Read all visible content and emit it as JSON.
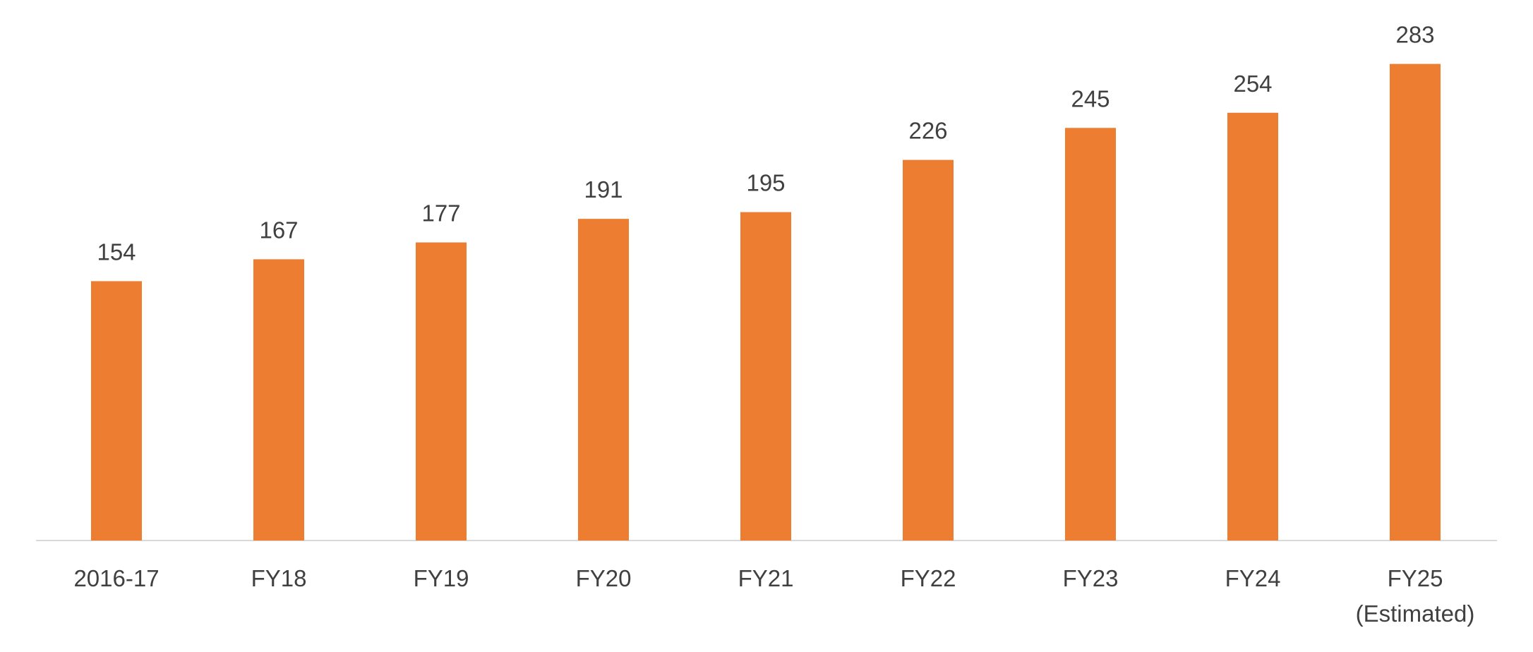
{
  "chart_data": {
    "type": "bar",
    "categories": [
      "2016-17",
      "FY18",
      "FY19",
      "FY20",
      "FY21",
      "FY22",
      "FY23",
      "FY24",
      "FY25\n(Estimated)"
    ],
    "values": [
      154,
      167,
      177,
      191,
      195,
      226,
      245,
      254,
      283
    ],
    "color": "#ed7d31",
    "ylim": [
      0,
      300
    ]
  }
}
